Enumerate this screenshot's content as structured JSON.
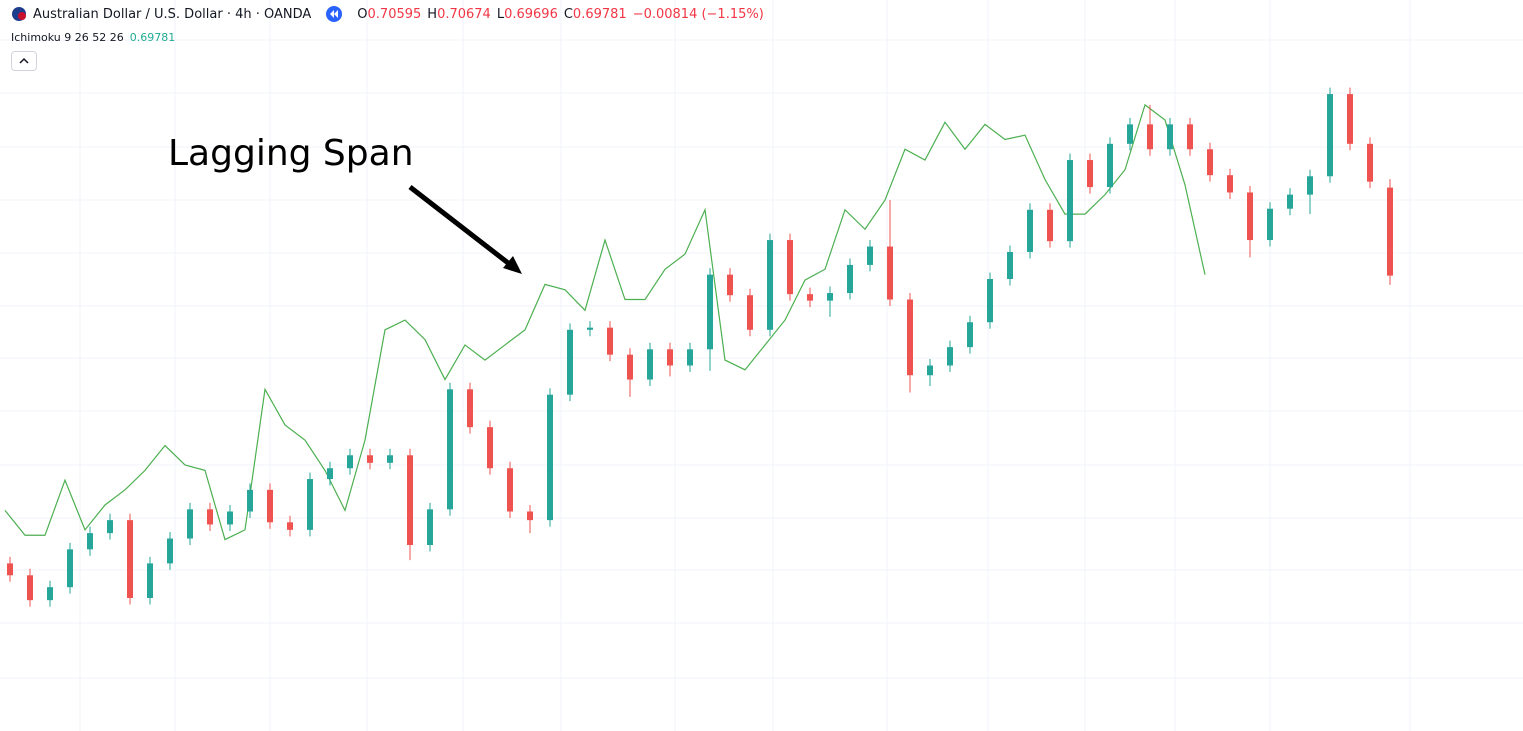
{
  "header": {
    "symbol": "Australian Dollar / U.S. Dollar · 4h · OANDA",
    "labels": [
      "O",
      "H",
      "L",
      "C"
    ],
    "change": "−0.00814 (−1.15%)",
    "indicator": "Ichimoku 9 26 52 26"
  },
  "chart_data": {
    "type": "candlestick",
    "annotation": "Lagging Span",
    "up_color": "#26a69a",
    "down_color": "#ef5350",
    "ylim": [
      0.6557,
      0.7233
    ],
    "ohlc": [
      [
        0.6712,
        0.6718,
        0.6695,
        0.6701
      ],
      [
        0.6701,
        0.6707,
        0.6672,
        0.6678
      ],
      [
        0.6678,
        0.6696,
        0.6672,
        0.669
      ],
      [
        0.669,
        0.6731,
        0.6684,
        0.6725
      ],
      [
        0.6725,
        0.6746,
        0.6719,
        0.674
      ],
      [
        0.674,
        0.6758,
        0.6734,
        0.6752
      ],
      [
        0.6752,
        0.6758,
        0.6674,
        0.668
      ],
      [
        0.668,
        0.6718,
        0.6674,
        0.6712
      ],
      [
        0.6712,
        0.6741,
        0.6706,
        0.6735
      ],
      [
        0.6735,
        0.6768,
        0.6729,
        0.6762
      ],
      [
        0.6762,
        0.6768,
        0.6742,
        0.6748
      ],
      [
        0.6748,
        0.6766,
        0.6742,
        0.676
      ],
      [
        0.676,
        0.6786,
        0.6754,
        0.678
      ],
      [
        0.678,
        0.6786,
        0.6744,
        0.675
      ],
      [
        0.675,
        0.6756,
        0.6737,
        0.6743
      ],
      [
        0.6743,
        0.6796,
        0.6737,
        0.679
      ],
      [
        0.679,
        0.6806,
        0.6784,
        0.68
      ],
      [
        0.68,
        0.6818,
        0.6794,
        0.6812
      ],
      [
        0.6812,
        0.6818,
        0.6799,
        0.6805
      ],
      [
        0.6805,
        0.6818,
        0.6799,
        0.6812
      ],
      [
        0.6812,
        0.6818,
        0.6715,
        0.6729
      ],
      [
        0.6729,
        0.6768,
        0.6723,
        0.6762
      ],
      [
        0.6762,
        0.6879,
        0.6756,
        0.6873
      ],
      [
        0.6873,
        0.6879,
        0.6832,
        0.6838
      ],
      [
        0.6838,
        0.6844,
        0.6794,
        0.68
      ],
      [
        0.68,
        0.6806,
        0.6754,
        0.676
      ],
      [
        0.676,
        0.6766,
        0.674,
        0.6752
      ],
      [
        0.6752,
        0.6874,
        0.6746,
        0.6868
      ],
      [
        0.6868,
        0.6934,
        0.6862,
        0.6928
      ],
      [
        0.6928,
        0.6936,
        0.6922,
        0.693
      ],
      [
        0.693,
        0.6936,
        0.6899,
        0.6905
      ],
      [
        0.6905,
        0.6911,
        0.6866,
        0.6882
      ],
      [
        0.6882,
        0.6916,
        0.6876,
        0.691
      ],
      [
        0.691,
        0.6916,
        0.6885,
        0.6895
      ],
      [
        0.6895,
        0.6916,
        0.6889,
        0.691
      ],
      [
        0.691,
        0.6985,
        0.689,
        0.6979
      ],
      [
        0.6979,
        0.6985,
        0.6954,
        0.696
      ],
      [
        0.696,
        0.6966,
        0.6922,
        0.6928
      ],
      [
        0.6928,
        0.7017,
        0.6922,
        0.7011
      ],
      [
        0.7011,
        0.7017,
        0.6955,
        0.6961
      ],
      [
        0.6961,
        0.6967,
        0.6949,
        0.6955
      ],
      [
        0.6955,
        0.6968,
        0.694,
        0.6962
      ],
      [
        0.6962,
        0.6994,
        0.6956,
        0.6988
      ],
      [
        0.6988,
        0.7011,
        0.6982,
        0.7005
      ],
      [
        0.7005,
        0.7048,
        0.695,
        0.6956
      ],
      [
        0.6956,
        0.6962,
        0.687,
        0.6886
      ],
      [
        0.6886,
        0.6901,
        0.6876,
        0.6895
      ],
      [
        0.6895,
        0.6918,
        0.6889,
        0.6912
      ],
      [
        0.6912,
        0.6941,
        0.6906,
        0.6935
      ],
      [
        0.6935,
        0.6981,
        0.6929,
        0.6975
      ],
      [
        0.6975,
        0.7006,
        0.6969,
        0.7
      ],
      [
        0.7,
        0.7045,
        0.6994,
        0.7039
      ],
      [
        0.7039,
        0.7045,
        0.7004,
        0.701
      ],
      [
        0.701,
        0.7091,
        0.7004,
        0.7085
      ],
      [
        0.7085,
        0.7091,
        0.7054,
        0.706
      ],
      [
        0.706,
        0.7106,
        0.7054,
        0.71
      ],
      [
        0.71,
        0.7124,
        0.7094,
        0.7118
      ],
      [
        0.7118,
        0.7136,
        0.7089,
        0.7095
      ],
      [
        0.7095,
        0.7124,
        0.7089,
        0.7118
      ],
      [
        0.7118,
        0.7124,
        0.7089,
        0.7095
      ],
      [
        0.7095,
        0.7101,
        0.7065,
        0.7071
      ],
      [
        0.7071,
        0.7077,
        0.7049,
        0.7055
      ],
      [
        0.7055,
        0.7061,
        0.6995,
        0.7011
      ],
      [
        0.7011,
        0.7046,
        0.7005,
        0.704
      ],
      [
        0.704,
        0.7059,
        0.7034,
        0.7053
      ],
      [
        0.7053,
        0.7076,
        0.7035,
        0.707
      ],
      [
        0.707,
        0.7152,
        0.7064,
        0.7146
      ],
      [
        0.7146,
        0.7152,
        0.7094,
        0.71
      ],
      [
        0.71,
        0.7106,
        0.7059,
        0.7065
      ],
      [
        0.70595,
        0.70674,
        0.69696,
        0.69781
      ]
    ],
    "lagging_span": {
      "color": "#4caf50",
      "values": [
        0.6761,
        0.6738,
        0.6738,
        0.6789,
        0.6743,
        0.6766,
        0.678,
        0.6798,
        0.6821,
        0.6803,
        0.6798,
        0.6734,
        0.6743,
        0.6873,
        0.684,
        0.6826,
        0.6798,
        0.6761,
        0.6826,
        0.6928,
        0.6937,
        0.6919,
        0.6882,
        0.6914,
        0.69,
        0.6914,
        0.6928,
        0.697,
        0.6965,
        0.6946,
        0.7011,
        0.6956,
        0.6956,
        0.6984,
        0.6998,
        0.7039,
        0.69,
        0.6891,
        0.6914,
        0.6937,
        0.6974,
        0.6984,
        0.7039,
        0.7021,
        0.7048,
        0.7095,
        0.7085,
        0.712,
        0.7095,
        0.7118,
        0.7104,
        0.7108,
        0.7067,
        0.7035,
        0.7035,
        0.7053,
        0.7076,
        0.7136,
        0.7122,
        0.7062,
        0.6979
      ]
    }
  }
}
